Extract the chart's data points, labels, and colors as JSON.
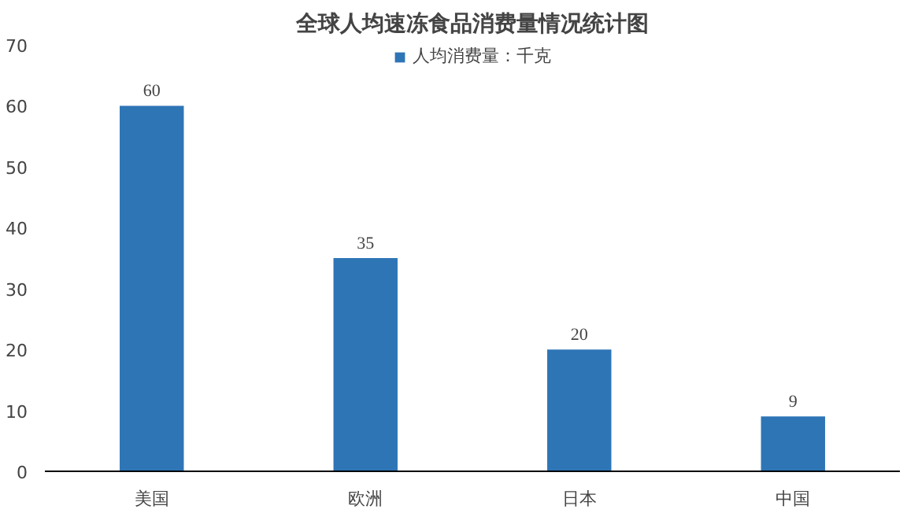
{
  "chart_data": {
    "type": "bar",
    "title": "全球人均速冻食品消费量情况统计图",
    "categories": [
      "美国",
      "欧洲",
      "日本",
      "中国"
    ],
    "series": [
      {
        "name": "人均消费量：千克",
        "color": "#2e75b6",
        "values": [
          60,
          35,
          20,
          9
        ]
      }
    ],
    "ylim": [
      0,
      70
    ],
    "yticks": [
      0,
      10,
      20,
      30,
      40,
      50,
      60,
      70
    ],
    "data_labels": true,
    "legend": "top",
    "grid": false
  }
}
